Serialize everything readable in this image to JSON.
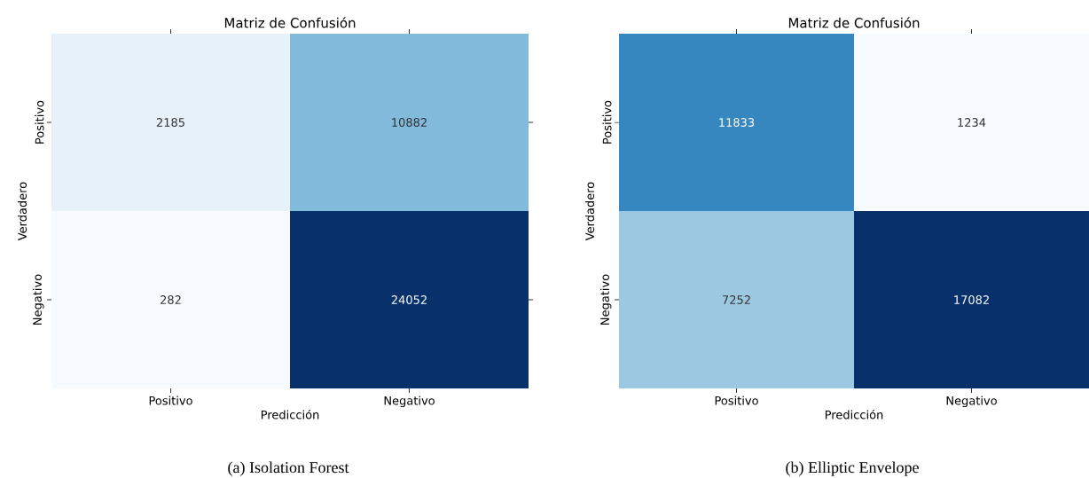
{
  "chart_data": [
    {
      "type": "heatmap",
      "title": "Matriz de Confusión",
      "xlabel": "Predicción",
      "ylabel": "Verdadero",
      "categories": [
        "Positivo",
        "Negativo"
      ],
      "y_categories": [
        "Positivo",
        "Negativo"
      ],
      "cells": [
        [
          2185,
          10882
        ],
        [
          282,
          24052
        ]
      ],
      "data_labels": true,
      "annotations": [
        "(a) Isolation Forest"
      ]
    },
    {
      "type": "heatmap",
      "title": "Matriz de Confusión",
      "xlabel": "Predicción",
      "ylabel": "Verdadero",
      "categories": [
        "Positivo",
        "Negativo"
      ],
      "y_categories": [
        "Positivo",
        "Negativo"
      ],
      "cells": [
        [
          11833,
          1234
        ],
        [
          7252,
          17082
        ]
      ],
      "data_labels": true,
      "annotations": [
        "(b) Elliptic Envelope"
      ]
    }
  ]
}
